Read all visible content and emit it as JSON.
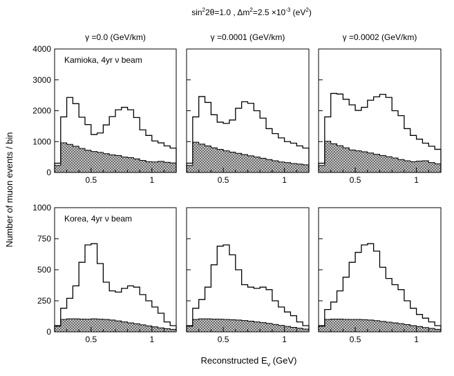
{
  "chart_data": {
    "type": "histogram-grid",
    "title": "sin²2θ=1.0 , Δm²=2.5×10⁻³ (eV²)",
    "title_parts": {
      "a": "sin",
      "b": "2",
      "c": "2θ=1.0 , Δm",
      "d": "2",
      "e": "=2.5 ×10",
      "f": "-3",
      "g": " (eV",
      "h": "2",
      "i": ")"
    },
    "ylabel": "Number of muon events / bin",
    "xlabel": {
      "main": "Reconstructed E",
      "sub": "ν",
      "unit": " (GeV)"
    },
    "xlim": [
      0.2,
      1.2
    ],
    "xticks": [
      0.5,
      1
    ],
    "xtick_labels": [
      "0.5",
      "1"
    ],
    "column_titles": [
      "γ =0.0 (GeV/km)",
      "γ =0.0001 (GeV/km)",
      "γ =0.0002 (GeV/km)"
    ],
    "rows": [
      {
        "label": "Kamioka,  4yr ν beam",
        "ylim": [
          0,
          4000
        ],
        "yticks": [
          0,
          1000,
          2000,
          3000,
          4000
        ],
        "ytick_labels": [
          "0",
          "1000",
          "2000",
          "3000",
          "4000"
        ],
        "bin_edges": [
          0.2,
          0.25,
          0.3,
          0.35,
          0.4,
          0.45,
          0.5,
          0.55,
          0.6,
          0.65,
          0.7,
          0.75,
          0.8,
          0.85,
          0.9,
          0.95,
          1.0,
          1.05,
          1.1,
          1.15,
          1.2
        ],
        "panels": [
          {
            "signal": [
              300,
              1800,
              2430,
              2230,
              1790,
              1550,
              1230,
              1280,
              1540,
              1810,
              2030,
              2110,
              2030,
              1780,
              1380,
              1200,
              1020,
              960,
              860,
              790
            ],
            "background": [
              230,
              960,
              910,
              850,
              780,
              720,
              680,
              650,
              610,
              570,
              550,
              500,
              480,
              440,
              390,
              350,
              340,
              360,
              330,
              310
            ]
          },
          {
            "signal": [
              300,
              1800,
              2460,
              2270,
              1870,
              1630,
              1590,
              1700,
              2080,
              2290,
              2240,
              2000,
              1760,
              1420,
              1260,
              1120,
              1000,
              950,
              860,
              790
            ],
            "background": [
              230,
              980,
              920,
              860,
              800,
              750,
              700,
              660,
              620,
              580,
              540,
              500,
              460,
              420,
              380,
              340,
              320,
              290,
              270,
              250
            ]
          },
          {
            "signal": [
              300,
              1800,
              2560,
              2540,
              2370,
              2190,
              2010,
              2110,
              2340,
              2450,
              2530,
              2430,
              2000,
              1840,
              1420,
              1200,
              1080,
              950,
              850,
              750
            ],
            "background": [
              230,
              1010,
              930,
              870,
              800,
              730,
              700,
              670,
              630,
              590,
              550,
              510,
              470,
              420,
              380,
              350,
              370,
              380,
              320,
              280
            ]
          }
        ]
      },
      {
        "label": "Korea,  4yr ν beam",
        "ylim": [
          0,
          1000
        ],
        "yticks": [
          0,
          250,
          500,
          750,
          1000
        ],
        "ytick_labels": [
          "0",
          "250",
          "500",
          "750",
          "1000"
        ],
        "bin_edges": [
          0.2,
          0.25,
          0.3,
          0.35,
          0.4,
          0.45,
          0.5,
          0.55,
          0.6,
          0.65,
          0.7,
          0.75,
          0.8,
          0.85,
          0.9,
          0.95,
          1.0,
          1.05,
          1.1,
          1.15,
          1.2
        ],
        "panels": [
          {
            "signal": [
              50,
              190,
              270,
              370,
              560,
              700,
              710,
              550,
              400,
              330,
              320,
              350,
              370,
              360,
              300,
              250,
              200,
              150,
              80,
              50
            ],
            "background": [
              45,
              100,
              105,
              105,
              103,
              102,
              105,
              102,
              100,
              95,
              88,
              80,
              72,
              65,
              56,
              48,
              40,
              32,
              26,
              20
            ]
          },
          {
            "signal": [
              50,
              190,
              260,
              360,
              540,
              690,
              700,
              620,
              500,
              380,
              360,
              350,
              360,
              340,
              250,
              200,
              160,
              130,
              80,
              50
            ],
            "background": [
              45,
              100,
              105,
              105,
              103,
              102,
              100,
              97,
              95,
              91,
              86,
              80,
              74,
              68,
              60,
              52,
              44,
              36,
              29,
              22
            ]
          },
          {
            "signal": [
              50,
              180,
              240,
              330,
              440,
              560,
              640,
              700,
              710,
              650,
              520,
              430,
              380,
              340,
              250,
              190,
              140,
              110,
              80,
              50
            ],
            "background": [
              45,
              100,
              103,
              103,
              101,
              100,
              100,
              98,
              95,
              90,
              84,
              78,
              72,
              66,
              58,
              50,
              43,
              35,
              28,
              20
            ]
          }
        ]
      }
    ]
  }
}
